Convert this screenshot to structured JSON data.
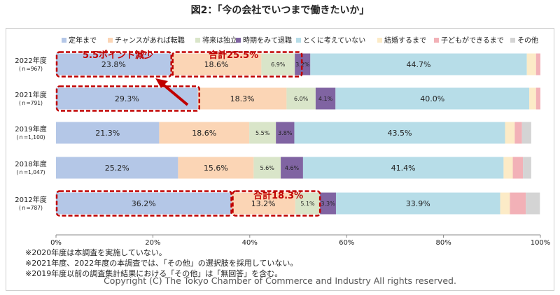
{
  "title": "図2：「今の会社でいつまで働きたいか」",
  "chart_data": {
    "type": "bar",
    "orientation": "horizontal",
    "stacked": true,
    "xlim": [
      0,
      100
    ],
    "x_ticks": [
      "0%",
      "20%",
      "40%",
      "60%",
      "80%",
      "100%"
    ],
    "legend_position": "top",
    "grid": false,
    "categories": [
      {
        "label": "2022年度",
        "sub": "(ｎ=967)"
      },
      {
        "label": "2021年度",
        "sub": "(ｎ=791)"
      },
      {
        "label": "2019年度",
        "sub": "(ｎ=1,100)"
      },
      {
        "label": "2018年度",
        "sub": "(ｎ=1,047)"
      },
      {
        "label": "2012年度",
        "sub": "(ｎ=787)"
      }
    ],
    "series": [
      {
        "name": "定年まで",
        "color": "#b4c7e7",
        "values": [
          23.8,
          29.3,
          21.3,
          25.2,
          36.2
        ],
        "labels": [
          "23.8%",
          "29.3%",
          "21.3%",
          "25.2%",
          "36.2%"
        ]
      },
      {
        "name": "チャンスがあれば転職",
        "color": "#fbd5b5",
        "values": [
          18.6,
          18.3,
          18.6,
          15.6,
          13.2
        ],
        "labels": [
          "18.6%",
          "18.3%",
          "18.6%",
          "15.6%",
          "13.2%"
        ]
      },
      {
        "name": "将来は独立",
        "color": "#d9e5c9",
        "values": [
          6.9,
          6.0,
          5.5,
          5.6,
          5.1
        ],
        "labels": [
          "6.9%",
          "6.0%",
          "5.5%",
          "5.6%",
          "5.1%"
        ]
      },
      {
        "name": "時期をみて退職",
        "color": "#8064a2",
        "values": [
          3.2,
          4.1,
          3.8,
          4.6,
          3.3
        ],
        "labels": [
          "3.2%",
          "4.1%",
          "3.8%",
          "4.6%",
          "3.3%"
        ]
      },
      {
        "name": "とくに考えていない",
        "color": "#b7dde8",
        "values": [
          44.7,
          40.0,
          43.5,
          41.4,
          33.9
        ],
        "labels": [
          "44.7%",
          "40.0%",
          "43.5%",
          "41.4%",
          "33.9%"
        ]
      },
      {
        "name": "結婚するまで",
        "color": "#fcebc7",
        "values": [
          1.9,
          1.4,
          2.0,
          1.9,
          2.0
        ],
        "labels": [
          "",
          "",
          "",
          "",
          ""
        ]
      },
      {
        "name": "子どもができるまで",
        "color": "#f2b1b7",
        "values": [
          0.9,
          0.9,
          1.5,
          2.1,
          3.3
        ],
        "labels": [
          "",
          "",
          "",
          "",
          ""
        ]
      },
      {
        "name": "その他",
        "color": "#d4d4d4",
        "values": [
          0,
          0,
          1.9,
          1.7,
          2.9
        ],
        "labels": [
          "",
          "",
          "",
          "",
          ""
        ]
      }
    ],
    "annotations": [
      {
        "text": "5.5ポイント減少",
        "row": 0,
        "kind": "callout-decrease",
        "color": "#c00000"
      },
      {
        "text": "合計25.5%",
        "row": 0,
        "kind": "callout-sum",
        "color": "#c00000",
        "range": [
          1,
          2
        ]
      },
      {
        "text": "合計18.3%",
        "row": 4,
        "kind": "callout-sum",
        "color": "#c00000",
        "range": [
          1,
          2
        ]
      }
    ]
  },
  "notes": [
    "※2020年度は本調査を実施していない。",
    "※2021年度、2022年度の本調査では、「その他」の選択肢を採用していない。",
    "※2019年度以前の調査集計結果における「その他」は「無回答」を含む。"
  ],
  "copyright": "Copyright (C) The Tokyo Chamber of Commerce and Industry All rights reserved."
}
